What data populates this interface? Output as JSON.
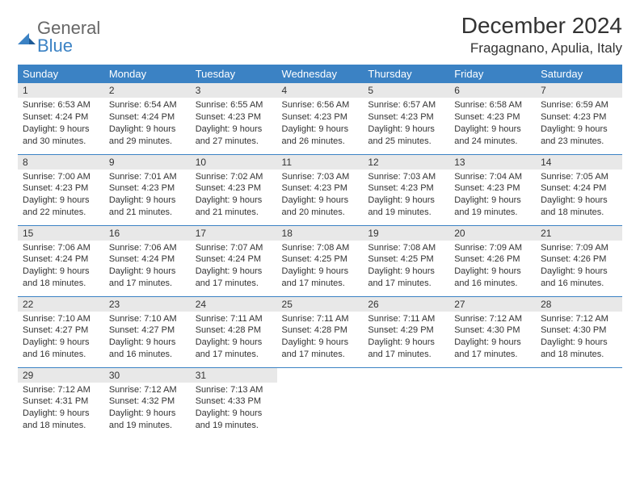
{
  "logo": {
    "word1": "General",
    "word2": "Blue"
  },
  "title": "December 2024",
  "location": "Fragagnano, Apulia, Italy",
  "colors": {
    "header_bg": "#3b82c4",
    "header_text": "#ffffff",
    "daynum_bg": "#e8e8e8",
    "border": "#3b82c4",
    "body_text": "#333333",
    "logo_gray": "#676767",
    "logo_blue": "#3b82c4",
    "page_bg": "#ffffff"
  },
  "weekdays": [
    "Sunday",
    "Monday",
    "Tuesday",
    "Wednesday",
    "Thursday",
    "Friday",
    "Saturday"
  ],
  "weeks": [
    [
      {
        "n": "1",
        "sr": "6:53 AM",
        "ss": "4:24 PM",
        "dl": "9 hours and 30 minutes."
      },
      {
        "n": "2",
        "sr": "6:54 AM",
        "ss": "4:24 PM",
        "dl": "9 hours and 29 minutes."
      },
      {
        "n": "3",
        "sr": "6:55 AM",
        "ss": "4:23 PM",
        "dl": "9 hours and 27 minutes."
      },
      {
        "n": "4",
        "sr": "6:56 AM",
        "ss": "4:23 PM",
        "dl": "9 hours and 26 minutes."
      },
      {
        "n": "5",
        "sr": "6:57 AM",
        "ss": "4:23 PM",
        "dl": "9 hours and 25 minutes."
      },
      {
        "n": "6",
        "sr": "6:58 AM",
        "ss": "4:23 PM",
        "dl": "9 hours and 24 minutes."
      },
      {
        "n": "7",
        "sr": "6:59 AM",
        "ss": "4:23 PM",
        "dl": "9 hours and 23 minutes."
      }
    ],
    [
      {
        "n": "8",
        "sr": "7:00 AM",
        "ss": "4:23 PM",
        "dl": "9 hours and 22 minutes."
      },
      {
        "n": "9",
        "sr": "7:01 AM",
        "ss": "4:23 PM",
        "dl": "9 hours and 21 minutes."
      },
      {
        "n": "10",
        "sr": "7:02 AM",
        "ss": "4:23 PM",
        "dl": "9 hours and 21 minutes."
      },
      {
        "n": "11",
        "sr": "7:03 AM",
        "ss": "4:23 PM",
        "dl": "9 hours and 20 minutes."
      },
      {
        "n": "12",
        "sr": "7:03 AM",
        "ss": "4:23 PM",
        "dl": "9 hours and 19 minutes."
      },
      {
        "n": "13",
        "sr": "7:04 AM",
        "ss": "4:23 PM",
        "dl": "9 hours and 19 minutes."
      },
      {
        "n": "14",
        "sr": "7:05 AM",
        "ss": "4:24 PM",
        "dl": "9 hours and 18 minutes."
      }
    ],
    [
      {
        "n": "15",
        "sr": "7:06 AM",
        "ss": "4:24 PM",
        "dl": "9 hours and 18 minutes."
      },
      {
        "n": "16",
        "sr": "7:06 AM",
        "ss": "4:24 PM",
        "dl": "9 hours and 17 minutes."
      },
      {
        "n": "17",
        "sr": "7:07 AM",
        "ss": "4:24 PM",
        "dl": "9 hours and 17 minutes."
      },
      {
        "n": "18",
        "sr": "7:08 AM",
        "ss": "4:25 PM",
        "dl": "9 hours and 17 minutes."
      },
      {
        "n": "19",
        "sr": "7:08 AM",
        "ss": "4:25 PM",
        "dl": "9 hours and 17 minutes."
      },
      {
        "n": "20",
        "sr": "7:09 AM",
        "ss": "4:26 PM",
        "dl": "9 hours and 16 minutes."
      },
      {
        "n": "21",
        "sr": "7:09 AM",
        "ss": "4:26 PM",
        "dl": "9 hours and 16 minutes."
      }
    ],
    [
      {
        "n": "22",
        "sr": "7:10 AM",
        "ss": "4:27 PM",
        "dl": "9 hours and 16 minutes."
      },
      {
        "n": "23",
        "sr": "7:10 AM",
        "ss": "4:27 PM",
        "dl": "9 hours and 16 minutes."
      },
      {
        "n": "24",
        "sr": "7:11 AM",
        "ss": "4:28 PM",
        "dl": "9 hours and 17 minutes."
      },
      {
        "n": "25",
        "sr": "7:11 AM",
        "ss": "4:28 PM",
        "dl": "9 hours and 17 minutes."
      },
      {
        "n": "26",
        "sr": "7:11 AM",
        "ss": "4:29 PM",
        "dl": "9 hours and 17 minutes."
      },
      {
        "n": "27",
        "sr": "7:12 AM",
        "ss": "4:30 PM",
        "dl": "9 hours and 17 minutes."
      },
      {
        "n": "28",
        "sr": "7:12 AM",
        "ss": "4:30 PM",
        "dl": "9 hours and 18 minutes."
      }
    ],
    [
      {
        "n": "29",
        "sr": "7:12 AM",
        "ss": "4:31 PM",
        "dl": "9 hours and 18 minutes."
      },
      {
        "n": "30",
        "sr": "7:12 AM",
        "ss": "4:32 PM",
        "dl": "9 hours and 19 minutes."
      },
      {
        "n": "31",
        "sr": "7:13 AM",
        "ss": "4:33 PM",
        "dl": "9 hours and 19 minutes."
      },
      null,
      null,
      null,
      null
    ]
  ],
  "labels": {
    "sunrise": "Sunrise:",
    "sunset": "Sunset:",
    "daylight": "Daylight:"
  }
}
